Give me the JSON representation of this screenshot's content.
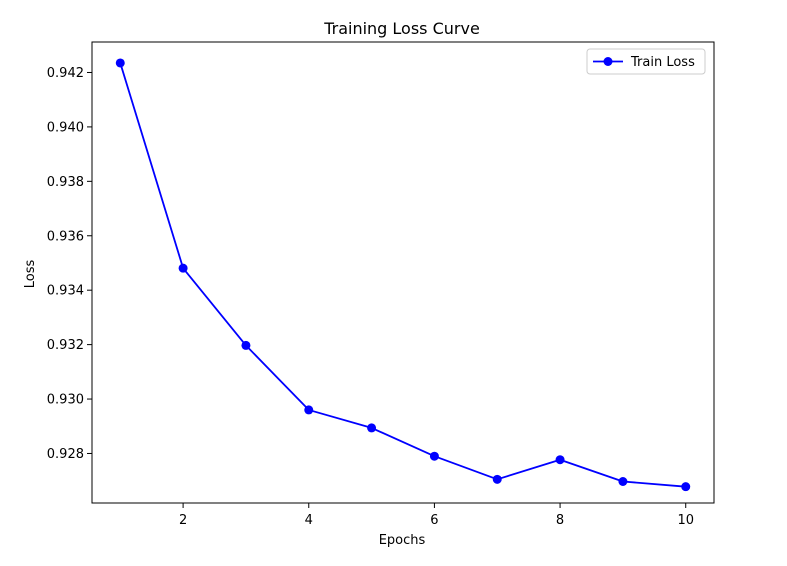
{
  "chart_data": {
    "type": "line",
    "title": "Training Loss Curve",
    "xlabel": "Epochs",
    "ylabel": "Loss",
    "xlim": [
      0.55,
      10.45
    ],
    "ylim": [
      0.92618,
      0.94312
    ],
    "x_ticks": [
      2,
      4,
      6,
      8,
      10
    ],
    "y_ticks": [
      0.928,
      0.93,
      0.932,
      0.934,
      0.936,
      0.938,
      0.94,
      0.942
    ],
    "x_tick_labels": [
      "2",
      "4",
      "6",
      "8",
      "10"
    ],
    "y_tick_labels": [
      "0.928",
      "0.930",
      "0.932",
      "0.934",
      "0.936",
      "0.938",
      "0.940",
      "0.942"
    ],
    "grid": false,
    "legend_position": "top-right",
    "series": [
      {
        "name": "Train Loss",
        "color": "#0000ff",
        "marker": "circle",
        "x": [
          1,
          2,
          3,
          4,
          5,
          6,
          7,
          8,
          9,
          10
        ],
        "y": [
          0.94235,
          0.93481,
          0.93197,
          0.9296,
          0.92894,
          0.9279,
          0.92705,
          0.92777,
          0.92697,
          0.92678
        ]
      }
    ]
  }
}
